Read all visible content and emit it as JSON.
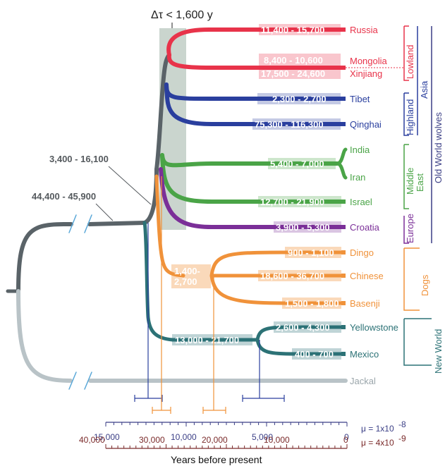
{
  "header": {
    "delta_tau": "Δτ < 1,600 y"
  },
  "nodes": {
    "root_label": "44,400 - 45,900",
    "wolf_split_label": "3,400 - 16,100",
    "dogs_label": "1,400-\n2,700",
    "dogs_label_line1": "1,400-",
    "dogs_label_line2": "2,700",
    "new_world_label": "13,000 - 21,700"
  },
  "taxa": [
    {
      "name": "Russia",
      "range": "11,400 - 15,700",
      "color": "#e8334a"
    },
    {
      "name": "Mongolia",
      "range": "8,400 - 10,600",
      "color": "#e8334a"
    },
    {
      "name": "Xinjiang",
      "range": "17,500 - 24,600",
      "color": "#e8334a"
    },
    {
      "name": "Tibet",
      "range": "2,300 - 2,700",
      "color": "#2a3f9e"
    },
    {
      "name": "Qinghai",
      "range": "75,300 - 116,300",
      "color": "#2a3f9e"
    },
    {
      "name": "India",
      "range": "",
      "color": "#4aa447"
    },
    {
      "name": "Iran",
      "range": "",
      "color": "#4aa447"
    },
    {
      "name": "India-Iran",
      "range": "5,400 - 7,000",
      "color": "#4aa447"
    },
    {
      "name": "Israel",
      "range": "12,700 - 21,900",
      "color": "#4aa447"
    },
    {
      "name": "Croatia",
      "range": "3,900 - 5,300",
      "color": "#7b2f98"
    },
    {
      "name": "Dingo",
      "range": "900 - 1,100",
      "color": "#f0923a"
    },
    {
      "name": "Chinese",
      "range": "18,600 - 36,700",
      "color": "#f0923a"
    },
    {
      "name": "Basenji",
      "range": "1,500 - 1,800",
      "color": "#f0923a"
    },
    {
      "name": "Yellowstone",
      "range": "2,600 - 4,300",
      "color": "#2c7276"
    },
    {
      "name": "Mexico",
      "range": "400 - 700",
      "color": "#2c7276"
    },
    {
      "name": "Jackal",
      "range": "",
      "color": "#a9b5ba"
    }
  ],
  "groups": {
    "lowland": "Lowland",
    "highland": "Highland",
    "asia": "Asia",
    "middle_east_1": "Middle",
    "middle_east_2": "East",
    "europe": "Europe",
    "old_world": "Old World wolves",
    "dogs": "Dogs",
    "new_world": "New World"
  },
  "axes": {
    "top_ticks": [
      "15,000",
      "10,000",
      "5,000",
      "0"
    ],
    "top_mu": "μ = 1x10",
    "top_exp": "-8",
    "bottom_ticks": [
      "40,000",
      "30,000",
      "20,000",
      "10,000",
      "0"
    ],
    "bottom_mu": "μ = 4x10",
    "bottom_exp": "-9",
    "xlabel": "Years before present"
  },
  "colors": {
    "red": "#e8334a",
    "blue": "#2a3f9e",
    "green": "#4aa447",
    "purple": "#7b2f98",
    "orange": "#f0923a",
    "teal": "#2c7276",
    "gray": "#5a6368",
    "light_gray": "#a9b5ba",
    "navy": "#3b3f86",
    "maroon": "#7a2a2a",
    "shade": "#9fb2a6"
  }
}
